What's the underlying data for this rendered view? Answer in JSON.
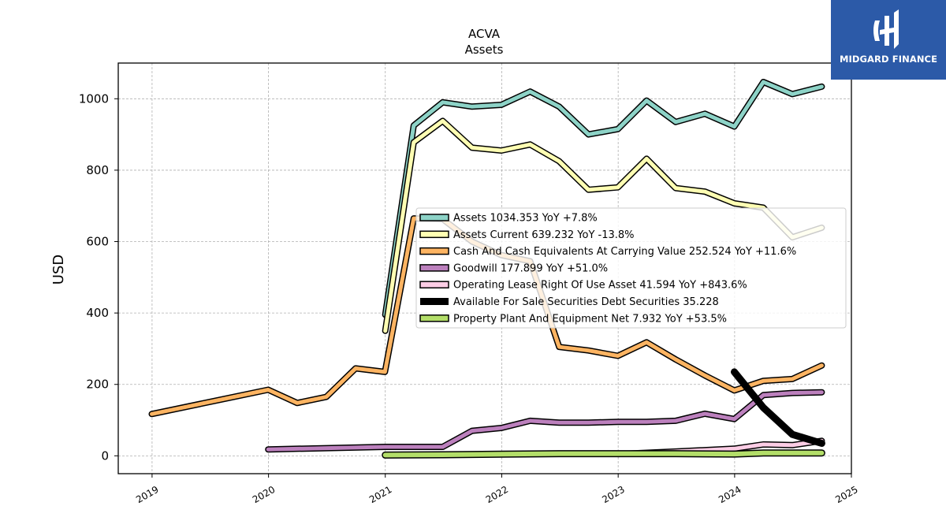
{
  "brand": {
    "name": "MIDGARD FINANCE"
  },
  "chart_data": {
    "type": "line",
    "title": "ACVA",
    "subtitle": "Assets",
    "ylabel": "USD",
    "xlabel": "",
    "xlim": [
      "2018-09-17",
      "2025-01-01"
    ],
    "ylim": [
      -50,
      1100
    ],
    "x_ticks": [
      "2019",
      "2020",
      "2021",
      "2022",
      "2023",
      "2024",
      "2025"
    ],
    "y_ticks": [
      0,
      200,
      400,
      600,
      800,
      1000
    ],
    "grid": true,
    "legend_position": "center-right",
    "series": [
      {
        "name": "Assets  1034.353 YoY +7.8%",
        "color": "#8dd3c7",
        "width": 5,
        "points": [
          [
            "2021-01-01",
            395
          ],
          [
            "2021-03-31",
            925
          ],
          [
            "2021-06-30",
            990
          ],
          [
            "2021-09-30",
            978
          ],
          [
            "2021-12-31",
            983
          ],
          [
            "2022-03-31",
            1020
          ],
          [
            "2022-06-30",
            978
          ],
          [
            "2022-09-30",
            900
          ],
          [
            "2022-12-31",
            915
          ],
          [
            "2023-03-31",
            995
          ],
          [
            "2023-06-30",
            935
          ],
          [
            "2023-09-30",
            958
          ],
          [
            "2023-12-31",
            922
          ],
          [
            "2024-03-31",
            1047
          ],
          [
            "2024-06-30",
            1013
          ],
          [
            "2024-09-30",
            1034
          ]
        ]
      },
      {
        "name": "Assets Current  639.232 YoY -13.8%",
        "color": "#ffffb3",
        "width": 5,
        "points": [
          [
            "2021-01-01",
            350
          ],
          [
            "2021-03-31",
            878
          ],
          [
            "2021-06-30",
            938
          ],
          [
            "2021-09-30",
            863
          ],
          [
            "2021-12-31",
            855
          ],
          [
            "2022-03-31",
            872
          ],
          [
            "2022-06-30",
            825
          ],
          [
            "2022-09-30",
            745
          ],
          [
            "2022-12-31",
            752
          ],
          [
            "2023-03-31",
            832
          ],
          [
            "2023-06-30",
            750
          ],
          [
            "2023-09-30",
            740
          ],
          [
            "2023-12-31",
            707
          ],
          [
            "2024-03-31",
            695
          ],
          [
            "2024-06-30",
            612
          ],
          [
            "2024-09-30",
            639
          ]
        ]
      },
      {
        "name": "Cash And Cash Equivalents At Carrying Value  252.524 YoY +11.6%",
        "color": "#fdb462",
        "width": 5,
        "points": [
          [
            "2018-12-31",
            117
          ],
          [
            "2019-12-31",
            185
          ],
          [
            "2020-03-31",
            148
          ],
          [
            "2020-06-30",
            165
          ],
          [
            "2020-09-30",
            245
          ],
          [
            "2020-12-31",
            235
          ],
          [
            "2021-03-31",
            665
          ],
          [
            "2021-06-30",
            663
          ],
          [
            "2021-09-30",
            600
          ],
          [
            "2021-12-31",
            562
          ],
          [
            "2022-03-31",
            545
          ],
          [
            "2022-06-30",
            305
          ],
          [
            "2022-09-30",
            295
          ],
          [
            "2022-12-31",
            280
          ],
          [
            "2023-03-31",
            318
          ],
          [
            "2023-06-30",
            270
          ],
          [
            "2023-09-30",
            225
          ],
          [
            "2023-12-31",
            183
          ],
          [
            "2024-03-31",
            210
          ],
          [
            "2024-06-30",
            215
          ],
          [
            "2024-09-30",
            253
          ]
        ]
      },
      {
        "name": "Goodwill  177.899 YoY +51.0%",
        "color": "#bc80bd",
        "width": 5,
        "points": [
          [
            "2019-12-31",
            18
          ],
          [
            "2020-12-31",
            25
          ],
          [
            "2021-03-31",
            25
          ],
          [
            "2021-06-30",
            25
          ],
          [
            "2021-09-30",
            70
          ],
          [
            "2021-12-31",
            78
          ],
          [
            "2022-03-31",
            98
          ],
          [
            "2022-06-30",
            93
          ],
          [
            "2022-09-30",
            93
          ],
          [
            "2022-12-31",
            95
          ],
          [
            "2023-03-31",
            95
          ],
          [
            "2023-06-30",
            98
          ],
          [
            "2023-09-30",
            118
          ],
          [
            "2023-12-31",
            103
          ],
          [
            "2024-03-31",
            170
          ],
          [
            "2024-06-30",
            176
          ],
          [
            "2024-09-30",
            178
          ]
        ]
      },
      {
        "name": "Operating Lease Right Of Use Asset  41.594 YoY +843.6%",
        "color": "#fccde5",
        "width": 5,
        "points": [
          [
            "2022-12-31",
            5
          ],
          [
            "2023-06-30",
            12
          ],
          [
            "2023-12-31",
            20
          ],
          [
            "2024-03-31",
            32
          ],
          [
            "2024-06-30",
            30
          ],
          [
            "2024-09-30",
            42
          ]
        ]
      },
      {
        "name": "Available For Sale Securities Debt Securities  35.228",
        "color": "#000000",
        "width": 9,
        "points": [
          [
            "2023-12-31",
            235
          ],
          [
            "2024-03-31",
            135
          ],
          [
            "2024-06-30",
            60
          ],
          [
            "2024-09-30",
            35
          ]
        ]
      },
      {
        "name": "Property Plant And Equipment Net  7.932 YoY +53.5%",
        "color": "#b3de69",
        "width": 6,
        "points": [
          [
            "2021-01-01",
            2
          ],
          [
            "2021-06-30",
            3
          ],
          [
            "2022-06-30",
            6
          ],
          [
            "2023-06-30",
            6
          ],
          [
            "2023-12-31",
            5
          ],
          [
            "2024-03-31",
            8
          ],
          [
            "2024-09-30",
            8
          ]
        ]
      }
    ]
  }
}
